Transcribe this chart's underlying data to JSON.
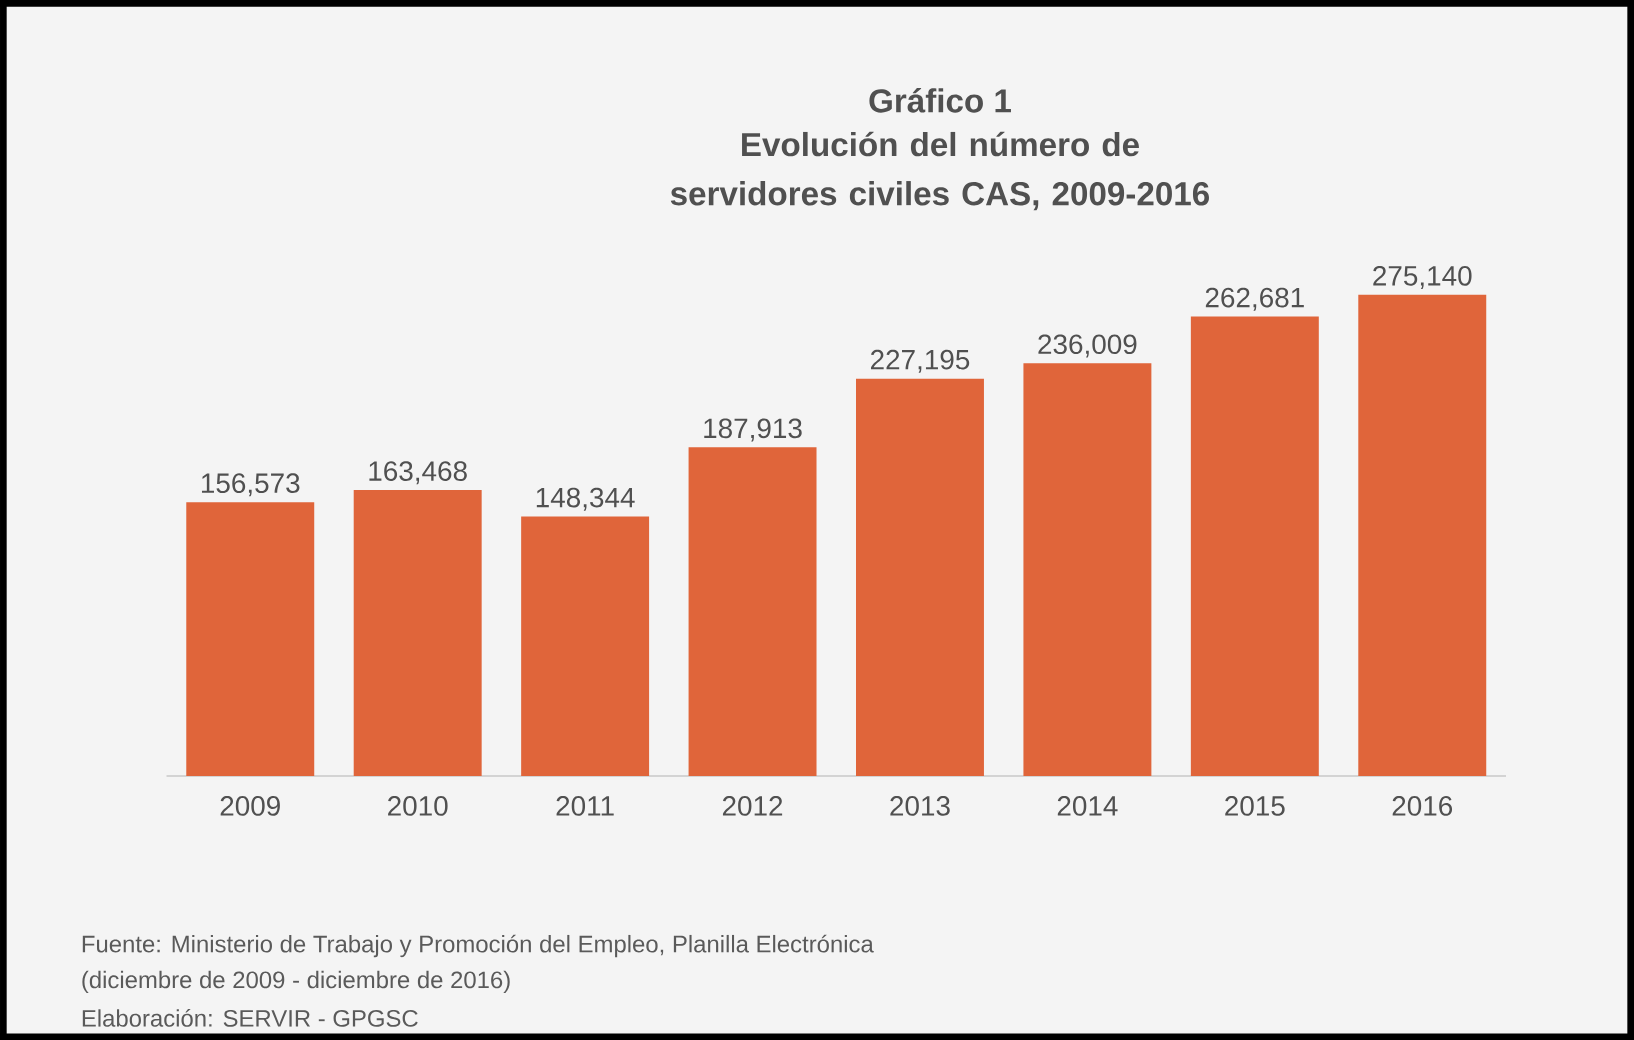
{
  "chart_data": {
    "type": "bar",
    "title": "Gráfico 1",
    "subtitle": "Evolución del número de servidores civiles CAS, 2009-2016",
    "categories": [
      "2009",
      "2010",
      "2011",
      "2012",
      "2013",
      "2014",
      "2015",
      "2016"
    ],
    "values": [
      156573,
      163468,
      148344,
      187913,
      227195,
      236009,
      262681,
      275140
    ],
    "value_labels": [
      "156,573",
      "163,468",
      "148,344",
      "187,913",
      "227,195",
      "236,009",
      "262,681",
      "275,140"
    ],
    "color": "#e0653a",
    "annotations": [
      "Fuente: Ministerio de Trabajo y Promoción del Empleo, Planilla Electrónica",
      "(diciembre de 2009 - diciembre de 2016)",
      "Elaboración: SERVIR - GPGSC"
    ]
  }
}
